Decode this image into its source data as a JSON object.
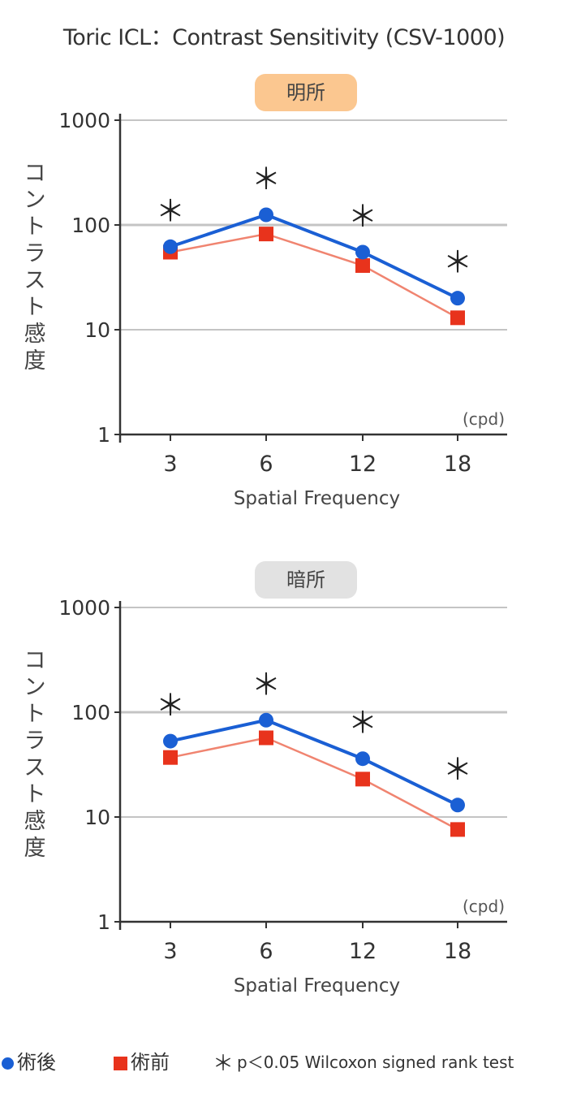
{
  "title": "Toric ICL：Contrast Sensitivity (CSV-1000)",
  "colors": {
    "postop": "#1a5fd4",
    "preop": "#e8331c",
    "preop_line": "#f08470",
    "grid": "#c4c4c4",
    "axis": "#333333",
    "photopic_badge": "#fbc790",
    "mesopic_badge": "#e2e2e2"
  },
  "legend": {
    "postop_label": "術後",
    "preop_label": "術前",
    "significance_symbol": "＊",
    "significance_label": "p＜0.05 Wilcoxon signed rank test"
  },
  "chart_data": [
    {
      "type": "line",
      "condition": "明所",
      "badge_color": "#fbc790",
      "categories": [
        "3",
        "6",
        "12",
        "18"
      ],
      "series": [
        {
          "name": "術後",
          "marker": "circle",
          "values": [
            62,
            125,
            55,
            20
          ]
        },
        {
          "name": "術前",
          "marker": "square",
          "values": [
            55,
            82,
            41,
            13
          ]
        }
      ],
      "significant": [
        true,
        true,
        true,
        true
      ],
      "xlabel": "Spatial Frequency",
      "unit": "(cpd)",
      "ylabel": "コントラスト感度",
      "yscale": "log",
      "ylim": [
        1,
        1000
      ],
      "yticks": [
        "1000",
        "100",
        "10",
        "1"
      ],
      "grid": true
    },
    {
      "type": "line",
      "condition": "暗所",
      "badge_color": "#e2e2e2",
      "categories": [
        "3",
        "6",
        "12",
        "18"
      ],
      "series": [
        {
          "name": "術後",
          "marker": "circle",
          "values": [
            53,
            84,
            36,
            13
          ]
        },
        {
          "name": "術前",
          "marker": "square",
          "values": [
            37,
            57,
            23,
            7.6
          ]
        }
      ],
      "significant": [
        true,
        true,
        true,
        true
      ],
      "xlabel": "Spatial Frequency",
      "unit": "(cpd)",
      "ylabel": "コントラスト感度",
      "yscale": "log",
      "ylim": [
        1,
        1000
      ],
      "yticks": [
        "1000",
        "100",
        "10",
        "1"
      ],
      "grid": true
    }
  ]
}
